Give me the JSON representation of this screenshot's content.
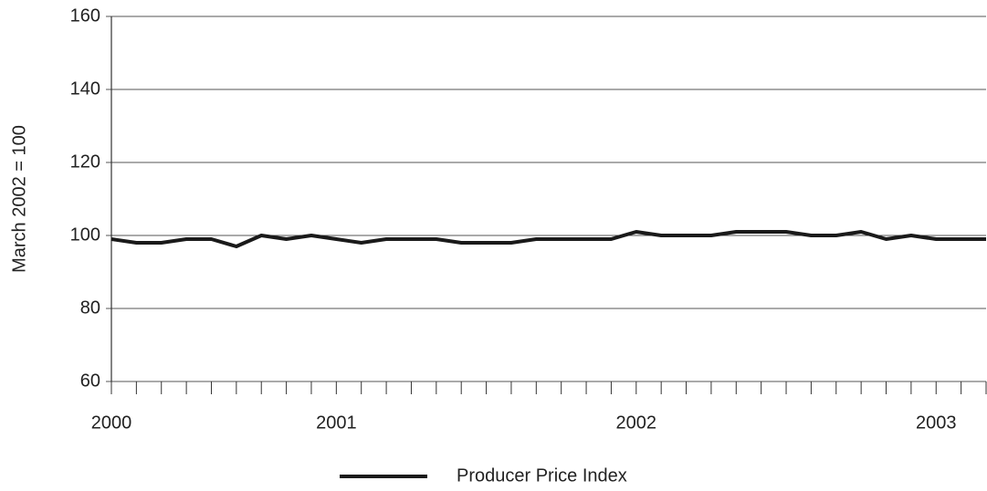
{
  "chart_data": {
    "type": "line",
    "y_label": "March 2002 = 100",
    "categories": [
      "2000",
      null,
      null,
      null,
      null,
      null,
      null,
      null,
      null,
      "2001",
      null,
      null,
      null,
      null,
      null,
      null,
      null,
      null,
      null,
      null,
      null,
      "2002",
      null,
      null,
      null,
      null,
      null,
      null,
      null,
      null,
      null,
      null,
      null,
      "2003",
      null,
      null
    ],
    "series": [
      {
        "name": "Producer Price Index",
        "color": "#1a1a1a",
        "values": [
          99,
          98,
          98,
          99,
          99,
          97,
          100,
          99,
          100,
          99,
          98,
          99,
          99,
          99,
          98,
          98,
          98,
          99,
          99,
          99,
          99,
          101,
          100,
          100,
          100,
          101,
          101,
          101,
          100,
          100,
          101,
          99,
          100,
          99,
          99,
          99
        ]
      }
    ],
    "ylim": [
      60,
      160
    ],
    "yticks": [
      60,
      80,
      100,
      120,
      140,
      160
    ],
    "grid": true,
    "legend": "bottom"
  }
}
